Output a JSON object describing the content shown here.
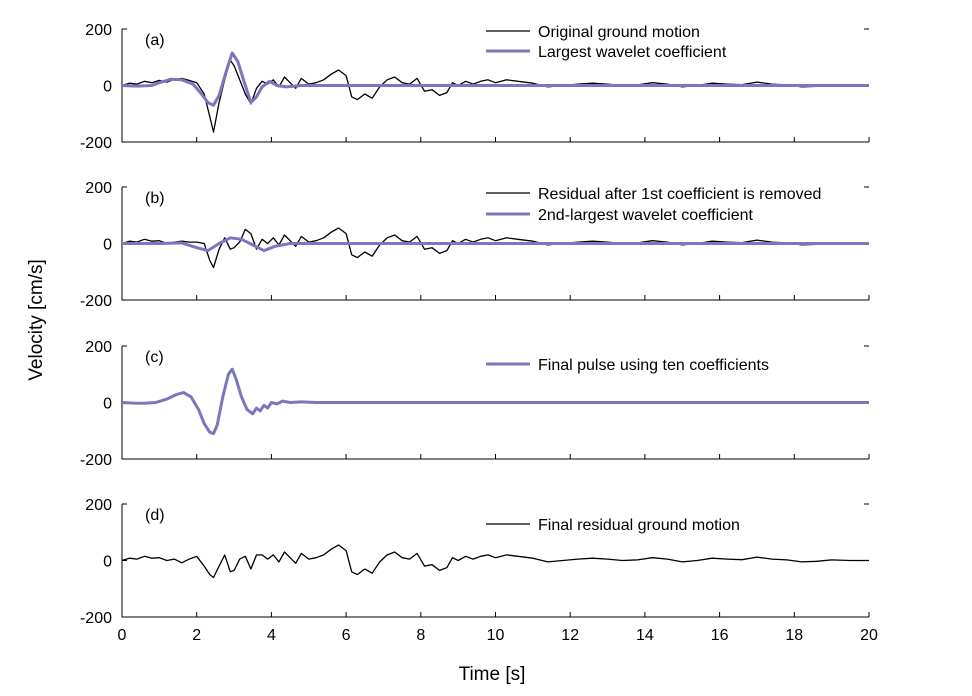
{
  "chart_data": {
    "type": "line",
    "xlabel": "Time [s]",
    "ylabel": "Velocity [cm/s]",
    "xlim": [
      0,
      20
    ],
    "ylim": [
      -200,
      200
    ],
    "xticks": [
      "0",
      "2",
      "4",
      "6",
      "8",
      "10",
      "12",
      "14",
      "16",
      "18",
      "20"
    ],
    "yticks": [
      "200",
      "0",
      "-200"
    ],
    "grid": false,
    "colors": {
      "ground": "#000000",
      "wavelet": "#7b76be"
    },
    "panels": [
      {
        "label": "(a)",
        "legend": [
          "Original ground motion",
          "Largest wavelet coefficient"
        ],
        "series": [
          {
            "name": "Original ground motion",
            "color": "#000000",
            "x": [
              0,
              0.2,
              0.4,
              0.6,
              0.8,
              1.0,
              1.2,
              1.4,
              1.6,
              1.8,
              2.0,
              2.2,
              2.35,
              2.45,
              2.6,
              2.75,
              2.9,
              3.0,
              3.15,
              3.3,
              3.45,
              3.6,
              3.75,
              3.9,
              4.05,
              4.2,
              4.35,
              4.5,
              4.65,
              4.8,
              5.0,
              5.2,
              5.4,
              5.6,
              5.8,
              6.0,
              6.15,
              6.3,
              6.5,
              6.7,
              6.9,
              7.1,
              7.3,
              7.5,
              7.7,
              7.9,
              8.1,
              8.3,
              8.5,
              8.7,
              8.85,
              9.0,
              9.2,
              9.4,
              9.6,
              9.8,
              10.0,
              10.3,
              10.6,
              11.0,
              11.4,
              11.8,
              12.2,
              12.6,
              13.0,
              13.4,
              13.8,
              14.2,
              14.6,
              15.0,
              15.4,
              15.8,
              16.2,
              16.6,
              17.0,
              17.4,
              17.8,
              18.2,
              18.6,
              19.0,
              19.5,
              20.0
            ],
            "y": [
              0,
              8,
              5,
              15,
              10,
              18,
              12,
              22,
              25,
              18,
              10,
              -30,
              -110,
              -165,
              -60,
              20,
              90,
              70,
              20,
              -30,
              -65,
              -10,
              15,
              5,
              20,
              -5,
              30,
              10,
              -10,
              25,
              5,
              10,
              20,
              40,
              55,
              35,
              -40,
              -50,
              -30,
              -45,
              -5,
              20,
              30,
              10,
              5,
              25,
              -20,
              -15,
              -35,
              -25,
              10,
              0,
              15,
              5,
              15,
              20,
              10,
              20,
              15,
              8,
              -5,
              0,
              5,
              8,
              5,
              0,
              2,
              10,
              5,
              -5,
              0,
              8,
              5,
              3,
              12,
              5,
              2,
              -5,
              -3,
              2,
              0,
              0
            ]
          },
          {
            "name": "Largest wavelet coefficient",
            "color": "#7b76be",
            "x": [
              0,
              0.4,
              0.8,
              1.0,
              1.3,
              1.6,
              1.9,
              2.1,
              2.3,
              2.45,
              2.6,
              2.8,
              2.95,
              3.1,
              3.3,
              3.45,
              3.6,
              3.75,
              3.95,
              4.15,
              4.4,
              4.8,
              5.5,
              7,
              10,
              14,
              20
            ],
            "y": [
              0,
              -2,
              0,
              10,
              22,
              20,
              5,
              -25,
              -60,
              -70,
              -35,
              55,
              115,
              85,
              0,
              -60,
              -40,
              -5,
              15,
              0,
              -5,
              0,
              0,
              0,
              0,
              0,
              0
            ]
          }
        ]
      },
      {
        "label": "(b)",
        "legend": [
          "Residual after 1st coefficient is removed",
          "2nd-largest wavelet coefficient"
        ],
        "series": [
          {
            "name": "Residual after 1st coefficient is removed",
            "color": "#000000",
            "x": [
              0,
              0.2,
              0.4,
              0.6,
              0.8,
              1.0,
              1.2,
              1.4,
              1.6,
              1.8,
              2.0,
              2.2,
              2.35,
              2.45,
              2.6,
              2.75,
              2.9,
              3.0,
              3.15,
              3.3,
              3.45,
              3.6,
              3.75,
              3.9,
              4.05,
              4.2,
              4.35,
              4.5,
              4.65,
              4.8,
              5.0,
              5.2,
              5.4,
              5.6,
              5.8,
              6.0,
              6.15,
              6.3,
              6.5,
              6.7,
              6.9,
              7.1,
              7.3,
              7.5,
              7.7,
              7.9,
              8.1,
              8.3,
              8.5,
              8.7,
              8.85,
              9.0,
              9.2,
              9.4,
              9.6,
              9.8,
              10.0,
              10.3,
              10.6,
              11.0,
              11.4,
              11.8,
              12.2,
              12.6,
              13.0,
              13.4,
              13.8,
              14.2,
              14.6,
              15.0,
              15.4,
              15.8,
              16.2,
              16.6,
              17.0,
              17.4,
              17.8,
              18.2,
              18.6,
              19.0,
              19.5,
              20.0
            ],
            "y": [
              0,
              8,
              5,
              15,
              8,
              10,
              0,
              5,
              8,
              5,
              5,
              0,
              -60,
              -85,
              -20,
              20,
              -20,
              -15,
              5,
              50,
              35,
              -20,
              15,
              0,
              20,
              -5,
              30,
              10,
              -10,
              25,
              5,
              10,
              20,
              40,
              55,
              35,
              -40,
              -50,
              -30,
              -45,
              -5,
              20,
              30,
              10,
              5,
              25,
              -20,
              -15,
              -35,
              -25,
              10,
              0,
              15,
              5,
              15,
              20,
              10,
              20,
              15,
              8,
              -5,
              0,
              5,
              8,
              5,
              0,
              2,
              10,
              5,
              -5,
              0,
              8,
              5,
              3,
              12,
              5,
              2,
              -5,
              -3,
              2,
              0,
              0
            ]
          },
          {
            "name": "2nd-largest wavelet coefficient",
            "color": "#7b76be",
            "x": [
              0,
              1.0,
              1.6,
              2.0,
              2.3,
              2.6,
              2.9,
              3.2,
              3.5,
              3.8,
              4.1,
              4.5,
              5.0,
              7,
              10,
              14,
              20
            ],
            "y": [
              0,
              0,
              2,
              -15,
              -25,
              0,
              20,
              15,
              -5,
              -25,
              -10,
              0,
              0,
              0,
              0,
              0,
              0
            ]
          }
        ]
      },
      {
        "label": "(c)",
        "legend": [
          "Final pulse using ten coefficients"
        ],
        "series": [
          {
            "name": "Final pulse using ten coefficients",
            "color": "#7b76be",
            "x": [
              0,
              0.3,
              0.6,
              0.9,
              1.2,
              1.45,
              1.65,
              1.85,
              2.05,
              2.2,
              2.35,
              2.45,
              2.55,
              2.7,
              2.85,
              2.95,
              3.05,
              3.2,
              3.35,
              3.5,
              3.6,
              3.7,
              3.8,
              3.9,
              4.0,
              4.15,
              4.3,
              4.5,
              4.8,
              5.2,
              6,
              8,
              10,
              14,
              20
            ],
            "y": [
              0,
              -2,
              -3,
              0,
              12,
              28,
              35,
              20,
              -25,
              -75,
              -105,
              -110,
              -80,
              20,
              100,
              118,
              85,
              20,
              -25,
              -40,
              -20,
              -30,
              -10,
              -20,
              0,
              -5,
              5,
              0,
              2,
              0,
              0,
              0,
              0,
              0,
              0
            ]
          }
        ]
      },
      {
        "label": "(d)",
        "legend": [
          "Final residual ground motion"
        ],
        "series": [
          {
            "name": "Final residual ground motion",
            "color": "#000000",
            "x": [
              0,
              0.2,
              0.4,
              0.6,
              0.8,
              1.0,
              1.2,
              1.4,
              1.6,
              1.8,
              2.0,
              2.2,
              2.35,
              2.45,
              2.6,
              2.75,
              2.9,
              3.0,
              3.15,
              3.3,
              3.45,
              3.6,
              3.75,
              3.9,
              4.05,
              4.2,
              4.35,
              4.5,
              4.65,
              4.8,
              5.0,
              5.2,
              5.4,
              5.6,
              5.8,
              6.0,
              6.15,
              6.3,
              6.5,
              6.7,
              6.9,
              7.1,
              7.3,
              7.5,
              7.7,
              7.9,
              8.1,
              8.3,
              8.5,
              8.7,
              8.85,
              9.0,
              9.2,
              9.4,
              9.6,
              9.8,
              10.0,
              10.3,
              10.6,
              11.0,
              11.4,
              11.8,
              12.2,
              12.6,
              13.0,
              13.4,
              13.8,
              14.2,
              14.6,
              15.0,
              15.4,
              15.8,
              16.2,
              16.6,
              17.0,
              17.4,
              17.8,
              18.2,
              18.6,
              19.0,
              19.5,
              20.0
            ],
            "y": [
              0,
              8,
              5,
              15,
              8,
              10,
              0,
              5,
              -8,
              5,
              15,
              -20,
              -50,
              -60,
              -20,
              20,
              -40,
              -35,
              5,
              15,
              -30,
              20,
              20,
              5,
              20,
              -5,
              30,
              10,
              -10,
              25,
              5,
              10,
              20,
              40,
              55,
              35,
              -40,
              -50,
              -30,
              -45,
              -5,
              20,
              30,
              10,
              5,
              25,
              -20,
              -15,
              -35,
              -25,
              10,
              0,
              15,
              5,
              15,
              20,
              10,
              20,
              15,
              8,
              -5,
              0,
              5,
              8,
              5,
              0,
              2,
              10,
              5,
              -5,
              0,
              8,
              5,
              3,
              12,
              5,
              2,
              -5,
              -3,
              2,
              0,
              0
            ]
          }
        ]
      }
    ]
  }
}
